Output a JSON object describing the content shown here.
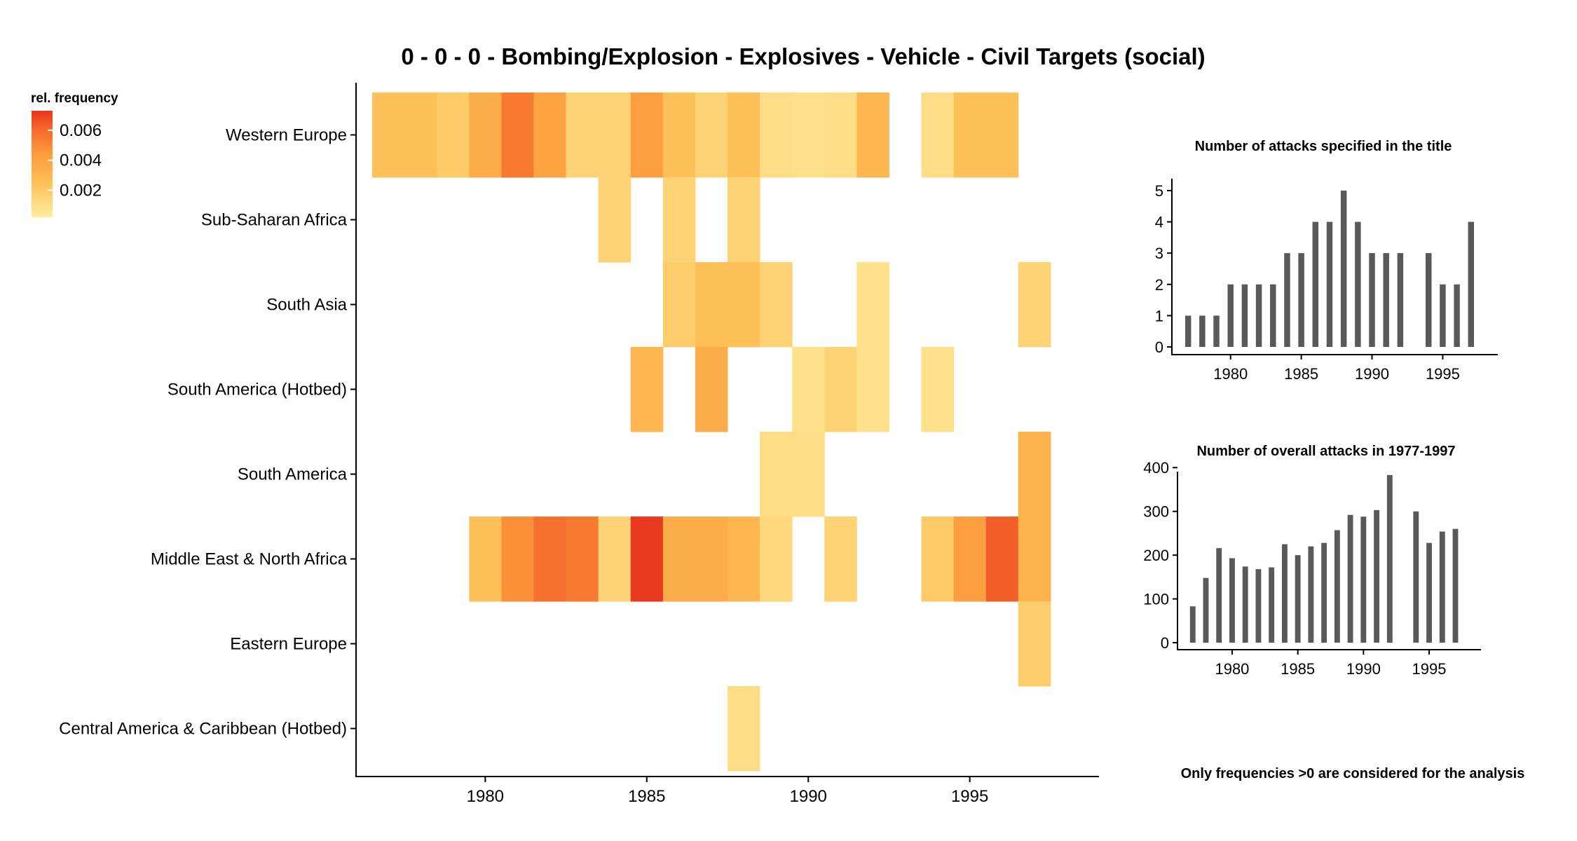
{
  "title": "0 - 0 - 0 - Bombing/Explosion - Explosives - Vehicle - Civil Targets (social)",
  "legend": {
    "title": "rel. frequency",
    "labels": [
      "0.006",
      "0.004",
      "0.002"
    ],
    "values": [
      0.006,
      0.004,
      0.002
    ],
    "range": [
      0.0002,
      0.0073
    ],
    "colors": [
      "#FFEDA0",
      "#FEC35A",
      "#FD9A3C",
      "#F66A2C",
      "#E8361E"
    ]
  },
  "note": "Only frequencies >0 are considered for the analysis",
  "chart_data": [
    {
      "type": "heatmap",
      "title": "0 - 0 - 0 - Bombing/Explosion - Explosives - Vehicle - Civil Targets (social)",
      "x_ticks": [
        "1980",
        "1985",
        "1990",
        "1995"
      ],
      "x_tick_values": [
        1980,
        1985,
        1990,
        1995
      ],
      "xlim": [
        1976,
        1999
      ],
      "regions": [
        "Western Europe",
        "Sub-Saharan Africa",
        "South Asia",
        "South America (Hotbed)",
        "South America",
        "Middle East & North Africa",
        "Eastern Europe",
        "Central America & Caribbean (Hotbed)"
      ],
      "cells": [
        {
          "region": "Western Europe",
          "values": [
            [
              1977,
              0.0025
            ],
            [
              1978,
              0.0025
            ],
            [
              1979,
              0.002
            ],
            [
              1980,
              0.0035
            ],
            [
              1981,
              0.0055
            ],
            [
              1982,
              0.004
            ],
            [
              1983,
              0.0015
            ],
            [
              1984,
              0.0015
            ],
            [
              1985,
              0.0042
            ],
            [
              1986,
              0.0025
            ],
            [
              1987,
              0.0015
            ],
            [
              1988,
              0.0025
            ],
            [
              1989,
              0.001
            ],
            [
              1990,
              0.0008
            ],
            [
              1991,
              0.001
            ],
            [
              1992,
              0.003
            ],
            [
              1994,
              0.001
            ],
            [
              1995,
              0.0025
            ],
            [
              1996,
              0.0025
            ]
          ]
        },
        {
          "region": "Sub-Saharan Africa",
          "values": [
            [
              1984,
              0.0015
            ],
            [
              1986,
              0.0015
            ],
            [
              1988,
              0.0015
            ]
          ]
        },
        {
          "region": "South Asia",
          "values": [
            [
              1986,
              0.0018
            ],
            [
              1987,
              0.0025
            ],
            [
              1988,
              0.0025
            ],
            [
              1989,
              0.0015
            ],
            [
              1992,
              0.0008
            ],
            [
              1997,
              0.0015
            ]
          ]
        },
        {
          "region": "South America (Hotbed)",
          "values": [
            [
              1985,
              0.003
            ],
            [
              1987,
              0.0035
            ],
            [
              1990,
              0.0008
            ],
            [
              1991,
              0.0015
            ],
            [
              1992,
              0.0008
            ],
            [
              1994,
              0.0008
            ]
          ]
        },
        {
          "region": "South America",
          "values": [
            [
              1989,
              0.001
            ],
            [
              1990,
              0.001
            ],
            [
              1997,
              0.0032
            ]
          ]
        },
        {
          "region": "Middle East & North Africa",
          "values": [
            [
              1980,
              0.0025
            ],
            [
              1981,
              0.0048
            ],
            [
              1982,
              0.0058
            ],
            [
              1983,
              0.0055
            ],
            [
              1984,
              0.0015
            ],
            [
              1985,
              0.0072
            ],
            [
              1986,
              0.0035
            ],
            [
              1987,
              0.0035
            ],
            [
              1988,
              0.003
            ],
            [
              1989,
              0.0012
            ],
            [
              1991,
              0.0015
            ],
            [
              1994,
              0.002
            ],
            [
              1995,
              0.0042
            ],
            [
              1996,
              0.0063
            ],
            [
              1997,
              0.0032
            ]
          ]
        },
        {
          "region": "Eastern Europe",
          "values": [
            [
              1997,
              0.0018
            ]
          ]
        },
        {
          "region": "Central America & Caribbean (Hotbed)",
          "values": [
            [
              1988,
              0.001
            ]
          ]
        }
      ]
    },
    {
      "type": "bar",
      "title": "Number of attacks specified in the title",
      "x": [
        1977,
        1978,
        1979,
        1980,
        1981,
        1982,
        1983,
        1984,
        1985,
        1986,
        1987,
        1988,
        1989,
        1990,
        1991,
        1992,
        1994,
        1995,
        1996,
        1997
      ],
      "values": [
        1,
        1,
        1,
        2,
        2,
        2,
        2,
        3,
        3,
        4,
        4,
        5,
        4,
        3,
        3,
        3,
        3,
        2,
        2,
        4
      ],
      "x_ticks": [
        "1980",
        "1985",
        "1990",
        "1995"
      ],
      "x_tick_values": [
        1980,
        1985,
        1990,
        1995
      ],
      "y_ticks": [
        "0",
        "1",
        "2",
        "3",
        "4",
        "5"
      ],
      "y_tick_values": [
        0,
        1,
        2,
        3,
        4,
        5
      ],
      "xlim": [
        1976,
        1998.2
      ],
      "ylim": [
        0,
        5.2
      ]
    },
    {
      "type": "bar",
      "title": "Number of overall attacks in 1977-1997",
      "x": [
        1977,
        1978,
        1979,
        1980,
        1981,
        1982,
        1983,
        1984,
        1985,
        1986,
        1987,
        1988,
        1989,
        1990,
        1991,
        1992,
        1994,
        1995,
        1996,
        1997
      ],
      "values": [
        83,
        148,
        216,
        193,
        174,
        168,
        172,
        225,
        200,
        220,
        228,
        257,
        292,
        288,
        303,
        383,
        300,
        228,
        254,
        260
      ],
      "x_ticks": [
        "1980",
        "1985",
        "1990",
        "1995"
      ],
      "x_tick_values": [
        1980,
        1985,
        1990,
        1995
      ],
      "y_ticks": [
        "0",
        "100",
        "200",
        "300",
        "400"
      ],
      "y_tick_values": [
        0,
        100,
        200,
        300,
        400
      ],
      "xlim": [
        1976,
        1998.2
      ],
      "ylim": [
        0,
        410
      ]
    }
  ]
}
